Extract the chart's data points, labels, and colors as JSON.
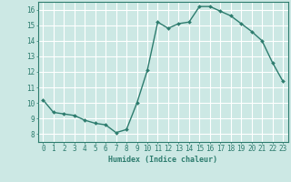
{
  "x": [
    0,
    1,
    2,
    3,
    4,
    5,
    6,
    7,
    8,
    9,
    10,
    11,
    12,
    13,
    14,
    15,
    16,
    17,
    18,
    19,
    20,
    21,
    22,
    23
  ],
  "y": [
    10.2,
    9.4,
    9.3,
    9.2,
    8.9,
    8.7,
    8.6,
    8.1,
    8.3,
    10.0,
    12.1,
    15.2,
    14.8,
    15.1,
    15.2,
    16.2,
    16.2,
    15.9,
    15.6,
    15.1,
    14.6,
    14.0,
    12.6,
    11.4
  ],
  "xlabel": "Humidex (Indice chaleur)",
  "xlim": [
    -0.5,
    23.5
  ],
  "ylim": [
    7.5,
    16.5
  ],
  "yticks": [
    8,
    9,
    10,
    11,
    12,
    13,
    14,
    15,
    16
  ],
  "xticks": [
    0,
    1,
    2,
    3,
    4,
    5,
    6,
    7,
    8,
    9,
    10,
    11,
    12,
    13,
    14,
    15,
    16,
    17,
    18,
    19,
    20,
    21,
    22,
    23
  ],
  "line_color": "#2d7c6e",
  "marker_color": "#2d7c6e",
  "bg_color": "#cce8e4",
  "grid_major_color": "#ffffff",
  "grid_minor_color": "#e8b8b8",
  "axis_color": "#2d7c6e",
  "xlabel_fontsize": 6.0,
  "tick_fontsize": 5.5,
  "linewidth": 1.0,
  "markersize": 2.0
}
